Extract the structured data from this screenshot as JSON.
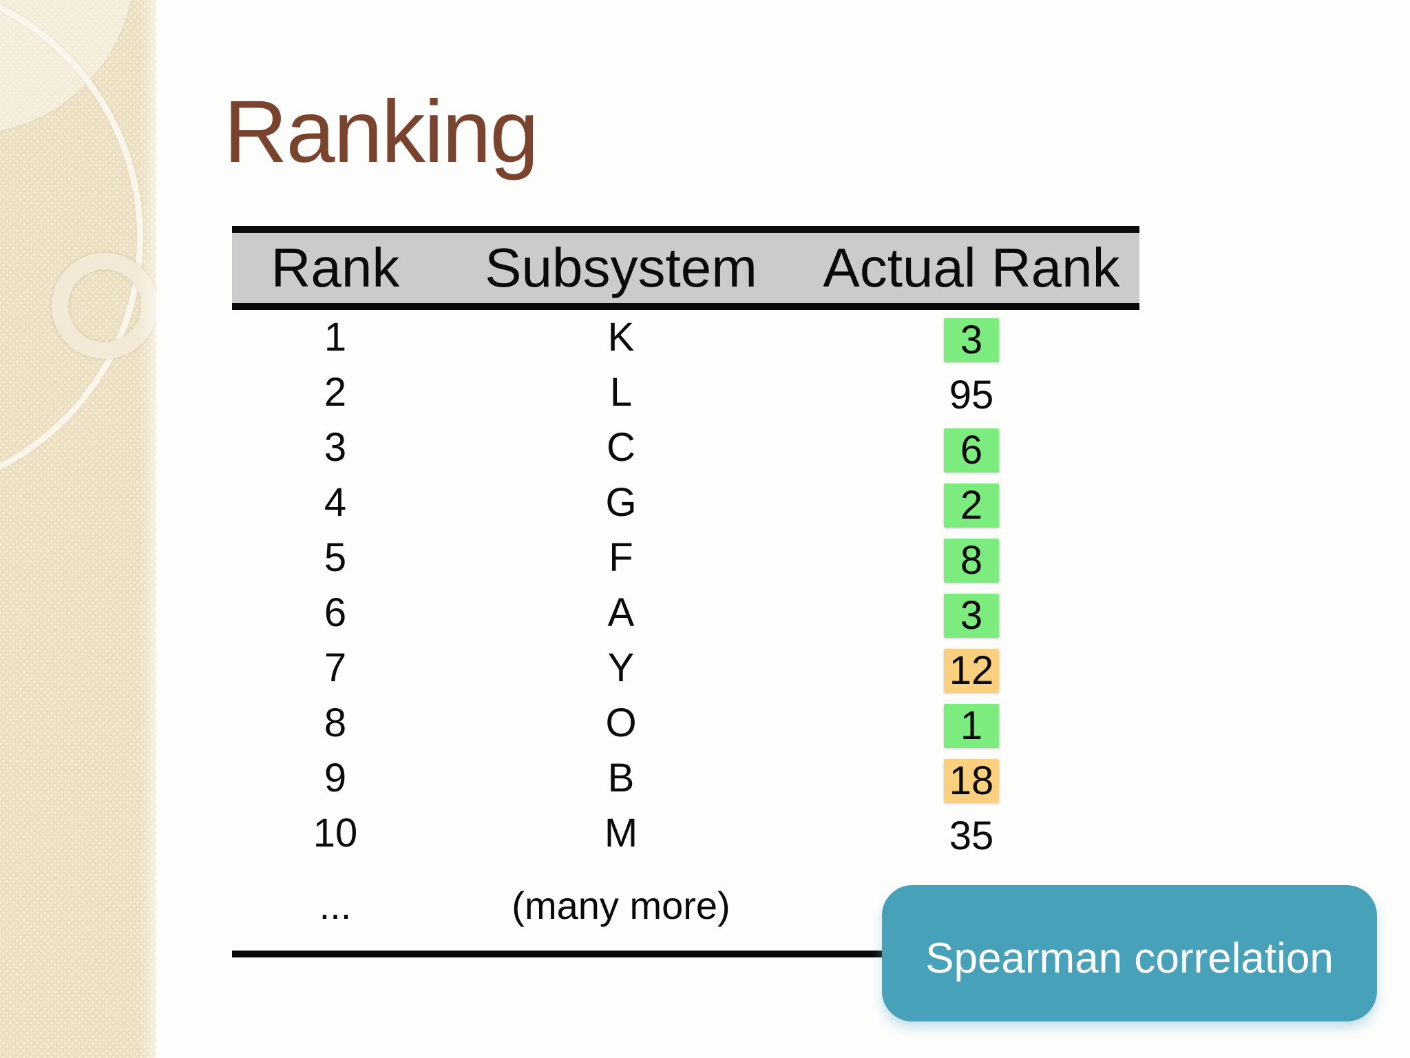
{
  "slide": {
    "title": "Ranking",
    "colors": {
      "title_text": "#7a432e",
      "sidebar_beige": "#ecdfc2",
      "header_bg": "#cbcbcb",
      "table_border": "#0a0a0a",
      "highlight_green": "#7bec7d",
      "highlight_orange": "#fad07e",
      "callout_teal": "#47a1b8",
      "callout_text": "#ffffff"
    },
    "table": {
      "headers": [
        "Rank",
        "Subsystem",
        "Actual Rank"
      ],
      "rows": [
        {
          "rank": "1",
          "subsystem": "K",
          "actual": "3",
          "highlight": "green"
        },
        {
          "rank": "2",
          "subsystem": "L",
          "actual": "95",
          "highlight": "none"
        },
        {
          "rank": "3",
          "subsystem": "C",
          "actual": "6",
          "highlight": "green"
        },
        {
          "rank": "4",
          "subsystem": "G",
          "actual": "2",
          "highlight": "green"
        },
        {
          "rank": "5",
          "subsystem": "F",
          "actual": "8",
          "highlight": "green"
        },
        {
          "rank": "6",
          "subsystem": "A",
          "actual": "3",
          "highlight": "green"
        },
        {
          "rank": "7",
          "subsystem": "Y",
          "actual": "12",
          "highlight": "orange"
        },
        {
          "rank": "8",
          "subsystem": "O",
          "actual": "1",
          "highlight": "green"
        },
        {
          "rank": "9",
          "subsystem": "B",
          "actual": "18",
          "highlight": "orange"
        },
        {
          "rank": "10",
          "subsystem": "M",
          "actual": "35",
          "highlight": "none"
        },
        {
          "rank": "...",
          "subsystem": "(many more)",
          "actual": "",
          "highlight": "none"
        }
      ]
    },
    "callout": {
      "label": "Spearman correlation"
    }
  }
}
